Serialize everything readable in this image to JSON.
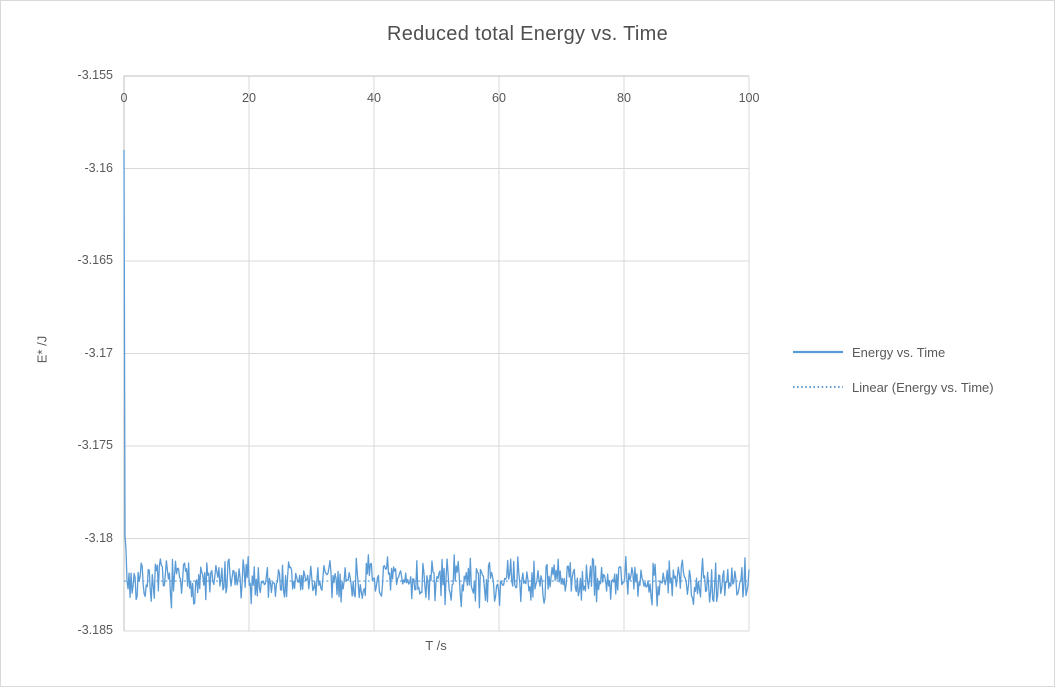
{
  "chart_data": {
    "type": "line",
    "title": "Reduced total Energy vs. Time",
    "xlabel": "T /s",
    "ylabel": "E* /J",
    "xlim": [
      0,
      100
    ],
    "ylim": [
      -3.185,
      -3.155
    ],
    "x_ticks": [
      0,
      20,
      40,
      60,
      80,
      100
    ],
    "y_ticks": [
      -3.155,
      -3.16,
      -3.165,
      -3.17,
      -3.175,
      -3.18,
      -3.185
    ],
    "y_tick_labels": [
      "-3.155",
      "-3.16",
      "-3.165",
      "-3.17",
      "-3.175",
      "-3.18",
      "-3.185"
    ],
    "grid": true,
    "x_axis_position": "top",
    "legend_position": "right",
    "series": [
      {
        "name": "Energy vs. Time",
        "style": "solid",
        "color": "#5B9BD5",
        "shape": "starts at -3.159 at t=0, drops almost vertically, then fluctuates randomly around -3.1823 for the full range t=0..100",
        "initial_value": -3.159,
        "baseline": -3.1823,
        "noise_half_width": 0.0015,
        "samples": 620,
        "spike_decay_per_sample": 1.8,
        "noise_seed": 7
      },
      {
        "name": "Linear (Energy vs. Time)",
        "style": "dotted",
        "color": "#5B9BD5",
        "trend_value": -3.1823
      }
    ],
    "legend": [
      {
        "label": "Energy vs. Time",
        "line_style": "solid"
      },
      {
        "label": "Linear (Energy vs. Time)",
        "line_style": "dotted"
      }
    ]
  },
  "colors": {
    "series_blue": "#5B9BD5",
    "gridline": "#D9D9D9",
    "axis_line": "#BFBFBF",
    "text_gray": "#595959"
  }
}
